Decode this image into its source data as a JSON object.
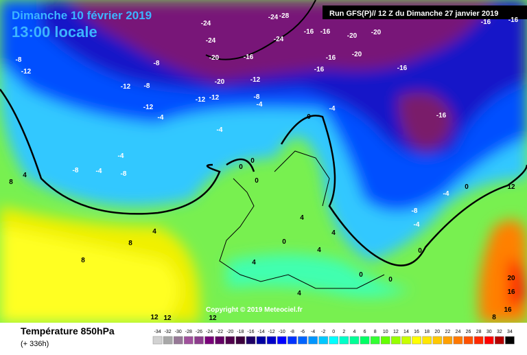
{
  "header": {
    "date": "Dimanche 10 février 2019",
    "time": "13:00 locale",
    "run": "Run GFS(P)// 12 Z du Dimanche 27 janvier 2019"
  },
  "map": {
    "copyright": "Copyright © 2019 Meteociel.fr",
    "isotherm_labels": [
      -24,
      -24,
      -28,
      -24,
      -24,
      -16,
      -16,
      -20,
      -20,
      -16,
      -16,
      -20,
      -16,
      -16,
      -20,
      -16,
      -16,
      -8,
      -12,
      -8,
      -12,
      -8,
      -20,
      -12,
      -12,
      -12,
      -8,
      -12,
      -4,
      -4,
      -16,
      -4,
      0,
      -4,
      -4,
      -8,
      -4,
      -8,
      4,
      8,
      0,
      0,
      0,
      -4,
      -8,
      -4,
      0,
      12,
      4,
      0,
      4,
      4,
      4,
      4,
      8,
      8,
      0,
      0,
      0,
      20,
      16,
      4,
      12,
      12,
      12,
      16,
      8
    ]
  },
  "legend": {
    "title": "Température 850hPa",
    "lead": "(+ 336h)",
    "values": [
      -34,
      -32,
      -30,
      -28,
      -26,
      -24,
      -22,
      -20,
      -18,
      -16,
      -14,
      -12,
      -10,
      -8,
      -6,
      -4,
      -2,
      0,
      2,
      4,
      6,
      8,
      10,
      12,
      14,
      16,
      18,
      20,
      22,
      24,
      26,
      28,
      30,
      32,
      34
    ],
    "colors": [
      "#d2d2d2",
      "#a8a8a8",
      "#967896",
      "#a0509c",
      "#8c3c8c",
      "#780078",
      "#640064",
      "#50004b",
      "#3c003c",
      "#1e0064",
      "#0000a0",
      "#0000c8",
      "#0000ff",
      "#0032ff",
      "#0064ff",
      "#0096ff",
      "#00c8ff",
      "#00ffff",
      "#00ffc8",
      "#00ff96",
      "#00ff64",
      "#32ff32",
      "#64ff00",
      "#96ff00",
      "#c8ff00",
      "#ffff00",
      "#ffe600",
      "#ffc800",
      "#ffa000",
      "#ff7800",
      "#ff5000",
      "#ff2800",
      "#ff0000",
      "#b40000",
      "#000000"
    ]
  }
}
